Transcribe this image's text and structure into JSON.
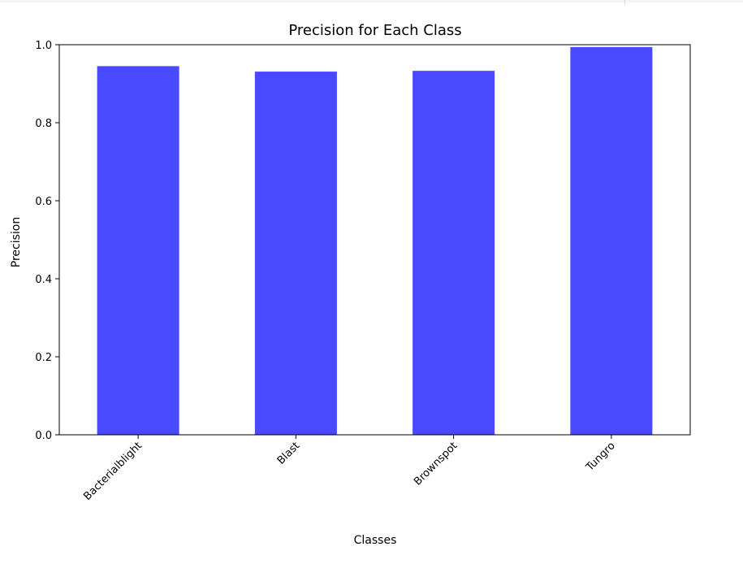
{
  "chart_data": {
    "type": "bar",
    "title": "Precision for Each Class",
    "xlabel": "Classes",
    "ylabel": "Precision",
    "categories": [
      "Bacterialblight",
      "Blast",
      "Brownspot",
      "Tungro"
    ],
    "values": [
      0.945,
      0.931,
      0.933,
      0.994
    ],
    "ylim": [
      0.0,
      1.0
    ],
    "yticks": [
      "0.0",
      "0.2",
      "0.4",
      "0.6",
      "0.8",
      "1.0"
    ],
    "bar_color": "#4949ff",
    "grid": false,
    "legend": "none"
  }
}
